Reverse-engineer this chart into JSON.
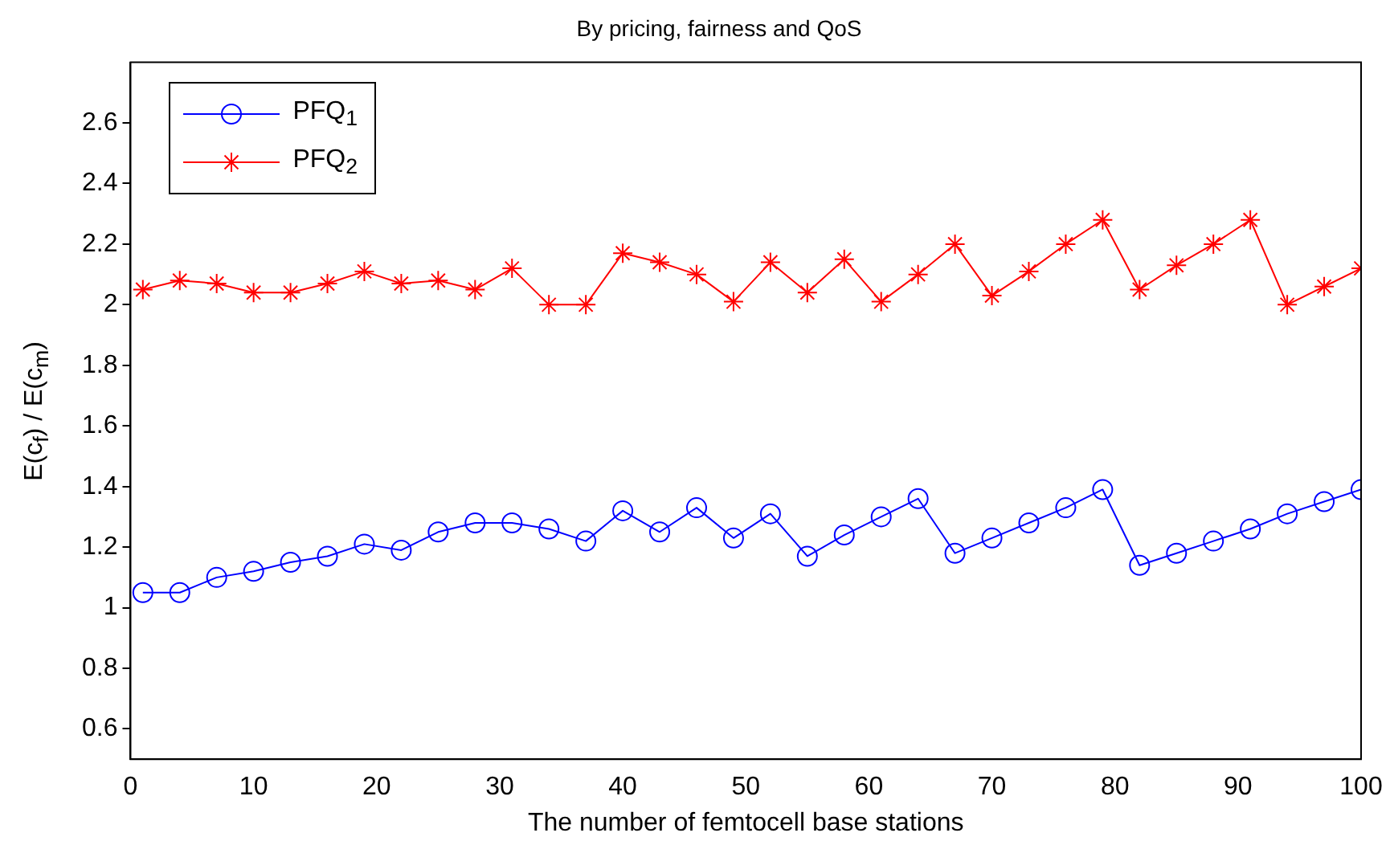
{
  "chart_data": {
    "type": "line",
    "title": "By pricing, fairness and QoS",
    "xlabel": "The number of femtocell base stations",
    "ylabel": "E(c$_{f}$) / E(c$_{m}$)",
    "x": [
      1,
      4,
      7,
      10,
      13,
      16,
      19,
      22,
      25,
      28,
      31,
      34,
      37,
      40,
      43,
      46,
      49,
      52,
      55,
      58,
      61,
      64,
      67,
      70,
      73,
      76,
      79,
      82,
      85,
      88,
      91,
      94,
      97,
      100
    ],
    "series": [
      {
        "name": "PFQ$_{1}$",
        "color": "#0000ff",
        "marker": "circle",
        "values": [
          1.05,
          1.05,
          1.1,
          1.12,
          1.15,
          1.17,
          1.21,
          1.19,
          1.25,
          1.28,
          1.28,
          1.26,
          1.22,
          1.32,
          1.25,
          1.33,
          1.23,
          1.31,
          1.17,
          1.24,
          1.3,
          1.36,
          1.18,
          1.23,
          1.28,
          1.33,
          1.39,
          1.14,
          1.18,
          1.22,
          1.26,
          1.31,
          1.35,
          1.39
        ]
      },
      {
        "name": "PFQ$_{2}$",
        "color": "#ff0000",
        "marker": "cross",
        "values": [
          2.05,
          2.08,
          2.07,
          2.04,
          2.04,
          2.07,
          2.11,
          2.07,
          2.08,
          2.05,
          2.12,
          2.0,
          2.0,
          2.17,
          2.14,
          2.1,
          2.01,
          2.14,
          2.04,
          2.15,
          2.01,
          2.1,
          2.2,
          2.03,
          2.11,
          2.2,
          2.28,
          2.05,
          2.13,
          2.2,
          2.28,
          2.0,
          2.06,
          2.12
        ]
      }
    ],
    "xlim": [
      0,
      100
    ],
    "xticks": [
      0,
      10,
      20,
      30,
      40,
      50,
      60,
      70,
      80,
      90,
      100
    ],
    "ylim": [
      0.5,
      2.8
    ],
    "yticks": [
      0.6,
      0.8,
      1,
      1.2,
      1.4,
      1.6,
      1.8,
      2,
      2.2,
      2.4,
      2.6
    ],
    "grid": false,
    "legend": "top left",
    "line_style": "solid"
  }
}
